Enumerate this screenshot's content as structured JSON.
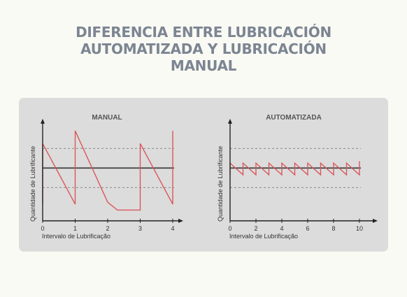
{
  "title": {
    "line1": "DIFERENCIA ENTRE LUBRICACIÓN",
    "line2": "AUTOMATIZADA Y LUBRICACIÓN",
    "line3": "MANUAL"
  },
  "colors": {
    "series": "#d9575b",
    "baseline": "#333333",
    "limits": "#888888",
    "title": "#7c8593",
    "panel": "#dcdcdc"
  },
  "chart_data": [
    {
      "type": "line",
      "title": "MANUAL",
      "xlabel": "Intervalo de Lubrificação",
      "ylabel": "Quantidade de Lubrificante",
      "xticks": [
        0,
        1,
        2,
        3,
        4
      ],
      "xlim": [
        0,
        4.3
      ],
      "ylim": [
        0,
        10
      ],
      "grid": false,
      "reference_level": 5.4,
      "limit_lines": [
        7.4,
        3.4
      ],
      "series": [
        {
          "x": [
            0,
            0,
            1,
            1,
            2,
            2.3,
            3,
            3,
            4,
            4
          ],
          "y": [
            1.8,
            7.9,
            1.7,
            9.2,
            1.9,
            1.1,
            1.1,
            7.9,
            1.7,
            9.2
          ]
        }
      ]
    },
    {
      "type": "line",
      "title": "AUTOMATIZADA",
      "xlabel": "Intervalo de Lubrificação",
      "ylabel": "Quantidade de Lubrificante",
      "xticks": [
        0,
        2,
        4,
        6,
        8,
        10
      ],
      "xlim": [
        0,
        11
      ],
      "ylim": [
        0,
        10
      ],
      "grid": false,
      "reference_level": 5.4,
      "limit_lines": [
        7.4,
        3.4
      ],
      "series": [
        {
          "x": [
            0,
            0,
            1,
            1,
            2,
            2,
            3,
            3,
            4,
            4,
            5,
            5,
            6,
            6,
            7,
            7,
            8,
            8,
            9,
            9,
            10,
            10
          ],
          "y": [
            4.7,
            5.9,
            4.7,
            5.9,
            4.7,
            5.9,
            4.7,
            5.9,
            4.7,
            5.9,
            4.7,
            5.9,
            4.7,
            5.9,
            4.7,
            5.9,
            4.7,
            5.9,
            4.7,
            5.9,
            4.7,
            6.1
          ]
        }
      ]
    }
  ]
}
